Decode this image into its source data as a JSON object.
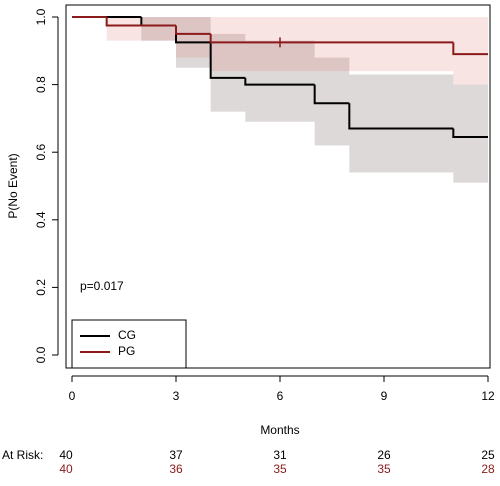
{
  "chart_data": {
    "type": "survival",
    "xlabel": "Months",
    "ylabel": "P(No Event)",
    "annotation": "p=0.017",
    "xlim": [
      0,
      12
    ],
    "ylim": [
      0,
      1
    ],
    "xticks": [
      0,
      3,
      6,
      9,
      12
    ],
    "yticks": [
      {
        "value": 0,
        "label": "0.0"
      },
      {
        "value": 0.2,
        "label": "0.2"
      },
      {
        "value": 0.4,
        "label": "0.4"
      },
      {
        "value": 0.6,
        "label": "0.6"
      },
      {
        "value": 0.8,
        "label": "0.8"
      },
      {
        "value": 1,
        "label": "1.0"
      }
    ],
    "series": [
      {
        "name": "CG",
        "color": "#000000",
        "band_color": "rgba(140,130,125,0.3)",
        "time": [
          0,
          2,
          3,
          4,
          5,
          7,
          8,
          11
        ],
        "values": [
          1,
          0.975,
          0.925,
          0.82,
          0.8,
          0.745,
          0.67,
          0.645
        ],
        "lower": [
          1,
          0.93,
          0.85,
          0.72,
          0.69,
          0.62,
          0.54,
          0.51
        ],
        "upper": [
          1,
          1,
          1,
          0.95,
          0.93,
          0.88,
          0.83,
          0.8
        ],
        "censor_times": []
      },
      {
        "name": "PG",
        "color": "#8b1a1a",
        "band_color": "rgba(225,120,120,0.2)",
        "time": [
          0,
          1,
          3,
          4,
          11
        ],
        "values": [
          1,
          0.975,
          0.95,
          0.925,
          0.89
        ],
        "lower": [
          1,
          0.93,
          0.88,
          0.84,
          0.8
        ],
        "upper": [
          1,
          1,
          1,
          1,
          1
        ],
        "censor_times": [
          6
        ]
      }
    ],
    "at_risk": {
      "label": "At Risk:",
      "rows": [
        {
          "color": "#000000",
          "values": [
            40,
            37,
            31,
            26,
            25
          ]
        },
        {
          "color": "#8b1a1a",
          "values": [
            40,
            36,
            35,
            35,
            28
          ]
        }
      ]
    }
  }
}
